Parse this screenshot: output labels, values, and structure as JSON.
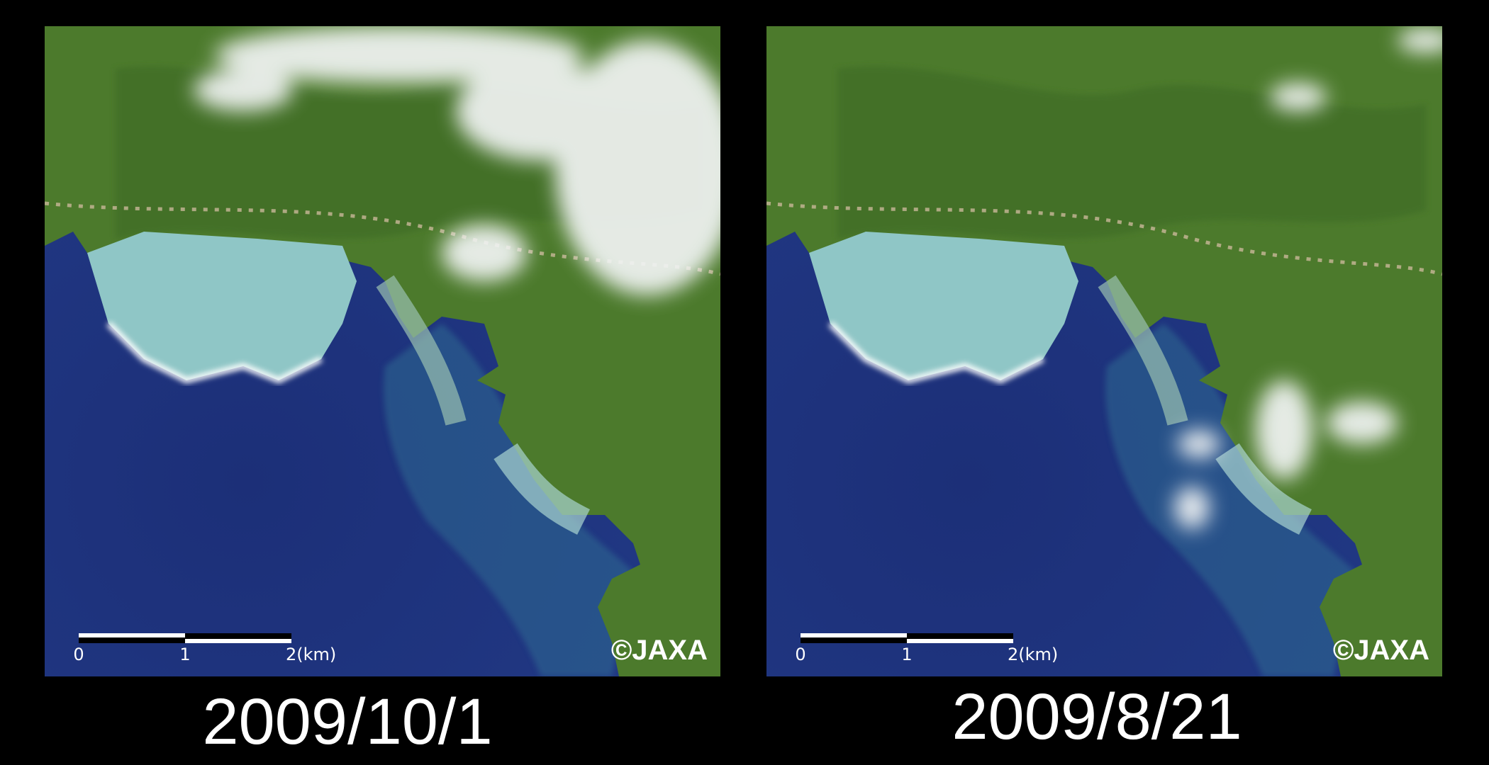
{
  "panels": [
    {
      "date": "2009/10/1",
      "scale": [
        "0",
        "1",
        "2(km)"
      ],
      "credit": "©JAXA"
    },
    {
      "date": "2009/8/21",
      "scale": [
        "0",
        "1",
        "2(km)"
      ],
      "credit": "©JAXA"
    }
  ]
}
